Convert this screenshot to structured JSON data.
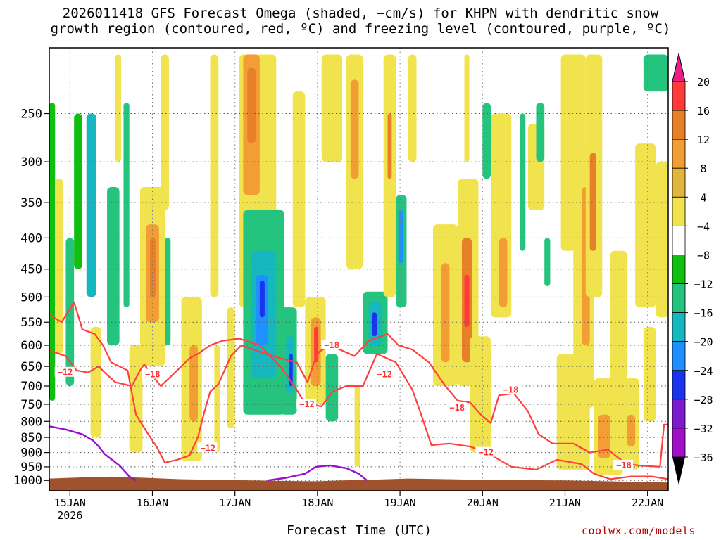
{
  "chart_data": {
    "type": "heatmap",
    "title_line1": "2026011418 GFS Forecast Omega (shaded, −cm/s) for KHPN with dendritic snow",
    "title_line2": "growth region (contoured, red, ºC) and freezing level (contoured, purple, ºC)",
    "xlabel": "Forecast Time (UTC)",
    "ylabel": "",
    "y_scale": "log-pressure",
    "ylim": [
      1040,
      195
    ],
    "y_ticks": [
      250,
      300,
      350,
      400,
      450,
      500,
      550,
      600,
      650,
      700,
      750,
      800,
      850,
      900,
      950,
      1000
    ],
    "x_ticks": [
      {
        "t": 0,
        "label": "15JAN",
        "sub": "2026"
      },
      {
        "t": 1,
        "label": "16JAN",
        "sub": ""
      },
      {
        "t": 2,
        "label": "17JAN",
        "sub": ""
      },
      {
        "t": 3,
        "label": "18JAN",
        "sub": ""
      },
      {
        "t": 4,
        "label": "19JAN",
        "sub": ""
      },
      {
        "t": 5,
        "label": "20JAN",
        "sub": ""
      },
      {
        "t": 6,
        "label": "21JAN",
        "sub": ""
      },
      {
        "t": 7,
        "label": "22JAN",
        "sub": ""
      }
    ],
    "xlim": [
      -0.25,
      7.25
    ],
    "grid": true,
    "colorbar": {
      "labels": [
        "20",
        "16",
        "12",
        "8",
        "4",
        "−4",
        "−8",
        "−12",
        "−16",
        "−20",
        "−24",
        "−28",
        "−32",
        "−36"
      ],
      "colors": [
        "#ff3a3a",
        "#e8802a",
        "#f29e35",
        "#e2b53c",
        "#f1e34e",
        "#ffffff",
        "#10c010",
        "#24c47e",
        "#17b7c0",
        "#1e90ff",
        "#1a34ee",
        "#7a1cce",
        "#a010c8",
        "#a9a9a9"
      ],
      "top_arrow_color": "#ee1c86",
      "bottom_arrow_color": "#000000"
    },
    "omega_cells": [
      {
        "t0": -0.25,
        "t1": -0.18,
        "p0": 240,
        "p1": 740,
        "v": -6
      },
      {
        "t0": -0.18,
        "t1": -0.08,
        "p0": 320,
        "p1": 620,
        "v": 5
      },
      {
        "t0": -0.05,
        "t1": 0.05,
        "p0": 400,
        "p1": 700,
        "v": -8
      },
      {
        "t0": 0.05,
        "t1": 0.15,
        "p0": 250,
        "p1": 450,
        "v": -6
      },
      {
        "t0": 0.2,
        "t1": 0.32,
        "p0": 250,
        "p1": 500,
        "v": -12
      },
      {
        "t0": 0.25,
        "t1": 0.38,
        "p0": 560,
        "p1": 850,
        "v": 5
      },
      {
        "t0": 0.45,
        "t1": 0.6,
        "p0": 330,
        "p1": 600,
        "v": -8
      },
      {
        "t0": 0.55,
        "t1": 0.62,
        "p0": 200,
        "p1": 300,
        "v": 5
      },
      {
        "t0": 0.65,
        "t1": 0.72,
        "p0": 240,
        "p1": 520,
        "v": -8
      },
      {
        "t0": 0.72,
        "t1": 0.88,
        "p0": 600,
        "p1": 900,
        "v": 5
      },
      {
        "t0": 0.85,
        "t1": 1.15,
        "p0": 330,
        "p1": 650,
        "v": 5
      },
      {
        "t0": 0.92,
        "t1": 1.08,
        "p0": 380,
        "p1": 550,
        "v": 9
      },
      {
        "t0": 0.97,
        "t1": 1.04,
        "p0": 400,
        "p1": 500,
        "v": 14
      },
      {
        "t0": 1.1,
        "t1": 1.2,
        "p0": 200,
        "p1": 360,
        "v": 5
      },
      {
        "t0": 1.15,
        "t1": 1.22,
        "p0": 400,
        "p1": 600,
        "v": -8
      },
      {
        "t0": 1.35,
        "t1": 1.6,
        "p0": 500,
        "p1": 930,
        "v": 5
      },
      {
        "t0": 1.45,
        "t1": 1.55,
        "p0": 600,
        "p1": 800,
        "v": 9
      },
      {
        "t0": 1.7,
        "t1": 1.8,
        "p0": 200,
        "p1": 500,
        "v": 5
      },
      {
        "t0": 1.75,
        "t1": 1.82,
        "p0": 600,
        "p1": 900,
        "v": 5
      },
      {
        "t0": 1.9,
        "t1": 2.0,
        "p0": 520,
        "p1": 820,
        "v": 5
      },
      {
        "t0": 2.05,
        "t1": 2.5,
        "p0": 200,
        "p1": 520,
        "v": 5
      },
      {
        "t0": 2.1,
        "t1": 2.3,
        "p0": 200,
        "p1": 340,
        "v": 10
      },
      {
        "t0": 2.15,
        "t1": 2.25,
        "p0": 210,
        "p1": 280,
        "v": 13
      },
      {
        "t0": 2.1,
        "t1": 2.6,
        "p0": 360,
        "p1": 780,
        "v": -8
      },
      {
        "t0": 2.2,
        "t1": 2.5,
        "p0": 420,
        "p1": 680,
        "v": -13
      },
      {
        "t0": 2.25,
        "t1": 2.4,
        "p0": 460,
        "p1": 600,
        "v": -17
      },
      {
        "t0": 2.3,
        "t1": 2.36,
        "p0": 470,
        "p1": 540,
        "v": -21
      },
      {
        "t0": 2.55,
        "t1": 2.75,
        "p0": 520,
        "p1": 780,
        "v": -8
      },
      {
        "t0": 2.62,
        "t1": 2.72,
        "p0": 580,
        "p1": 720,
        "v": -13
      },
      {
        "t0": 2.66,
        "t1": 2.7,
        "p0": 620,
        "p1": 700,
        "v": -20
      },
      {
        "t0": 2.7,
        "t1": 2.85,
        "p0": 230,
        "p1": 520,
        "v": 5
      },
      {
        "t0": 2.85,
        "t1": 3.1,
        "p0": 500,
        "p1": 750,
        "v": 5
      },
      {
        "t0": 2.92,
        "t1": 3.04,
        "p0": 540,
        "p1": 700,
        "v": 9
      },
      {
        "t0": 2.96,
        "t1": 3.01,
        "p0": 560,
        "p1": 640,
        "v": 16
      },
      {
        "t0": 3.05,
        "t1": 3.3,
        "p0": 200,
        "p1": 300,
        "v": 5
      },
      {
        "t0": 3.1,
        "t1": 3.25,
        "p0": 620,
        "p1": 800,
        "v": -8
      },
      {
        "t0": 3.35,
        "t1": 3.55,
        "p0": 200,
        "p1": 450,
        "v": 5
      },
      {
        "t0": 3.4,
        "t1": 3.5,
        "p0": 220,
        "p1": 320,
        "v": 9
      },
      {
        "t0": 3.45,
        "t1": 3.52,
        "p0": 700,
        "p1": 950,
        "v": 5
      },
      {
        "t0": 3.55,
        "t1": 3.85,
        "p0": 490,
        "p1": 620,
        "v": -8
      },
      {
        "t0": 3.62,
        "t1": 3.78,
        "p0": 510,
        "p1": 600,
        "v": -13
      },
      {
        "t0": 3.66,
        "t1": 3.72,
        "p0": 530,
        "p1": 580,
        "v": -20
      },
      {
        "t0": 3.8,
        "t1": 3.95,
        "p0": 200,
        "p1": 500,
        "v": 5
      },
      {
        "t0": 3.85,
        "t1": 3.9,
        "p0": 250,
        "p1": 320,
        "v": 12
      },
      {
        "t0": 3.95,
        "t1": 4.08,
        "p0": 340,
        "p1": 520,
        "v": -10
      },
      {
        "t0": 3.98,
        "t1": 4.04,
        "p0": 360,
        "p1": 440,
        "v": -16
      },
      {
        "t0": 4.1,
        "t1": 4.2,
        "p0": 200,
        "p1": 300,
        "v": 5
      },
      {
        "t0": 4.4,
        "t1": 4.7,
        "p0": 380,
        "p1": 700,
        "v": 5
      },
      {
        "t0": 4.5,
        "t1": 4.6,
        "p0": 440,
        "p1": 640,
        "v": 9
      },
      {
        "t0": 4.7,
        "t1": 4.95,
        "p0": 320,
        "p1": 700,
        "v": 5
      },
      {
        "t0": 4.75,
        "t1": 4.87,
        "p0": 400,
        "p1": 640,
        "v": 12
      },
      {
        "t0": 4.78,
        "t1": 4.84,
        "p0": 460,
        "p1": 560,
        "v": 16
      },
      {
        "t0": 4.78,
        "t1": 4.84,
        "p0": 200,
        "p1": 300,
        "v": 5
      },
      {
        "t0": 4.85,
        "t1": 5.1,
        "p0": 580,
        "p1": 900,
        "v": 5
      },
      {
        "t0": 5.0,
        "t1": 5.1,
        "p0": 240,
        "p1": 320,
        "v": -8
      },
      {
        "t0": 5.1,
        "t1": 5.35,
        "p0": 250,
        "p1": 540,
        "v": 5
      },
      {
        "t0": 5.2,
        "t1": 5.3,
        "p0": 400,
        "p1": 520,
        "v": 9
      },
      {
        "t0": 5.45,
        "t1": 5.52,
        "p0": 250,
        "p1": 420,
        "v": -8
      },
      {
        "t0": 5.55,
        "t1": 5.75,
        "p0": 260,
        "p1": 360,
        "v": 5
      },
      {
        "t0": 5.65,
        "t1": 5.75,
        "p0": 240,
        "p1": 300,
        "v": -8
      },
      {
        "t0": 5.75,
        "t1": 5.82,
        "p0": 400,
        "p1": 480,
        "v": -8
      },
      {
        "t0": 5.9,
        "t1": 6.3,
        "p0": 620,
        "p1": 960,
        "v": 5
      },
      {
        "t0": 5.95,
        "t1": 6.25,
        "p0": 200,
        "p1": 420,
        "v": 5
      },
      {
        "t0": 6.1,
        "t1": 6.35,
        "p0": 280,
        "p1": 760,
        "v": 5
      },
      {
        "t0": 6.2,
        "t1": 6.3,
        "p0": 330,
        "p1": 600,
        "v": 10
      },
      {
        "t0": 6.25,
        "t1": 6.45,
        "p0": 200,
        "p1": 500,
        "v": 5
      },
      {
        "t0": 6.3,
        "t1": 6.38,
        "p0": 290,
        "p1": 420,
        "v": 13
      },
      {
        "t0": 6.35,
        "t1": 6.7,
        "p0": 680,
        "p1": 980,
        "v": 5
      },
      {
        "t0": 6.4,
        "t1": 6.55,
        "p0": 780,
        "p1": 920,
        "v": 9
      },
      {
        "t0": 6.55,
        "t1": 6.75,
        "p0": 420,
        "p1": 760,
        "v": 5
      },
      {
        "t0": 6.7,
        "t1": 6.9,
        "p0": 680,
        "p1": 960,
        "v": 5
      },
      {
        "t0": 6.75,
        "t1": 6.85,
        "p0": 780,
        "p1": 880,
        "v": 9
      },
      {
        "t0": 6.85,
        "t1": 7.1,
        "p0": 280,
        "p1": 520,
        "v": 5
      },
      {
        "t0": 6.95,
        "t1": 7.1,
        "p0": 560,
        "p1": 800,
        "v": 5
      },
      {
        "t0": 6.95,
        "t1": 7.25,
        "p0": 200,
        "p1": 230,
        "v": -8
      },
      {
        "t0": 7.1,
        "t1": 7.25,
        "p0": 300,
        "p1": 540,
        "v": 5
      }
    ],
    "dgz_labels": [
      {
        "t": -0.15,
        "p": 665,
        "text": "−12"
      },
      {
        "t": 0.91,
        "p": 670,
        "text": "−18"
      },
      {
        "t": 1.58,
        "p": 885,
        "text": "−12"
      },
      {
        "t": 2.78,
        "p": 750,
        "text": "−12"
      },
      {
        "t": 3.08,
        "p": 600,
        "text": "−18"
      },
      {
        "t": 3.72,
        "p": 670,
        "text": "−12"
      },
      {
        "t": 4.6,
        "p": 760,
        "text": "−18"
      },
      {
        "t": 5.25,
        "p": 710,
        "text": "−18"
      },
      {
        "t": 4.95,
        "p": 900,
        "text": "−12"
      },
      {
        "t": 6.62,
        "p": 945,
        "text": "−18"
      }
    ],
    "dgz_minus12": [
      [
        -0.25,
        612
      ],
      [
        -0.05,
        625
      ],
      [
        0.08,
        660
      ],
      [
        0.22,
        665
      ],
      [
        0.35,
        650
      ],
      [
        0.42,
        665
      ],
      [
        0.55,
        690
      ],
      [
        0.75,
        700
      ],
      [
        0.85,
        660
      ],
      [
        0.9,
        645
      ],
      [
        0.95,
        660
      ],
      [
        1.1,
        700
      ],
      [
        1.25,
        670
      ],
      [
        1.35,
        650
      ],
      [
        1.45,
        630
      ],
      [
        1.55,
        620
      ],
      [
        1.7,
        600
      ],
      [
        1.85,
        590
      ],
      [
        2.05,
        585
      ],
      [
        2.3,
        600
      ],
      [
        2.55,
        650
      ],
      [
        2.72,
        700
      ],
      [
        2.85,
        748
      ],
      [
        3.05,
        756
      ],
      [
        3.18,
        715
      ],
      [
        3.35,
        700
      ],
      [
        3.55,
        700
      ],
      [
        3.72,
        620
      ],
      [
        3.95,
        640
      ],
      [
        4.15,
        710
      ],
      [
        4.25,
        775
      ],
      [
        4.38,
        875
      ],
      [
        4.6,
        870
      ],
      [
        4.85,
        880
      ],
      [
        5.05,
        900
      ],
      [
        5.35,
        950
      ],
      [
        5.65,
        960
      ],
      [
        5.9,
        925
      ],
      [
        6.2,
        940
      ],
      [
        6.35,
        975
      ],
      [
        6.55,
        995
      ],
      [
        6.8,
        985
      ],
      [
        7.05,
        985
      ],
      [
        7.25,
        995
      ]
    ],
    "dgz_minus18": [
      [
        -0.25,
        535
      ],
      [
        -0.1,
        550
      ],
      [
        0.05,
        510
      ],
      [
        0.15,
        565
      ],
      [
        0.3,
        575
      ],
      [
        0.4,
        600
      ],
      [
        0.5,
        640
      ],
      [
        0.7,
        660
      ],
      [
        0.8,
        780
      ],
      [
        0.95,
        840
      ],
      [
        1.05,
        880
      ],
      [
        1.15,
        935
      ],
      [
        1.3,
        925
      ],
      [
        1.45,
        910
      ],
      [
        1.55,
        850
      ],
      [
        1.62,
        780
      ],
      [
        1.7,
        715
      ],
      [
        1.8,
        695
      ],
      [
        1.95,
        625
      ],
      [
        2.08,
        600
      ],
      [
        2.3,
        615
      ],
      [
        2.55,
        630
      ],
      [
        2.75,
        640
      ],
      [
        2.88,
        690
      ],
      [
        2.95,
        645
      ],
      [
        3.02,
        615
      ],
      [
        3.15,
        600
      ],
      [
        3.45,
        625
      ],
      [
        3.62,
        590
      ],
      [
        3.85,
        575
      ],
      [
        3.98,
        600
      ],
      [
        4.15,
        610
      ],
      [
        4.35,
        640
      ],
      [
        4.55,
        700
      ],
      [
        4.7,
        740
      ],
      [
        4.85,
        745
      ],
      [
        4.98,
        780
      ],
      [
        5.1,
        805
      ],
      [
        5.2,
        725
      ],
      [
        5.38,
        720
      ],
      [
        5.55,
        770
      ],
      [
        5.68,
        840
      ],
      [
        5.85,
        870
      ],
      [
        6.1,
        870
      ],
      [
        6.3,
        900
      ],
      [
        6.52,
        890
      ],
      [
        6.72,
        935
      ],
      [
        6.88,
        945
      ],
      [
        7.15,
        950
      ],
      [
        7.2,
        810
      ],
      [
        7.25,
        810
      ]
    ],
    "freezing_level": [
      [
        -0.25,
        815
      ],
      [
        -0.05,
        825
      ],
      [
        0.15,
        840
      ],
      [
        0.28,
        860
      ],
      [
        0.35,
        880
      ],
      [
        0.42,
        905
      ],
      [
        0.6,
        945
      ],
      [
        0.72,
        985
      ],
      [
        0.8,
        1000
      ]
    ],
    "freezing_level_2": [
      [
        2.4,
        1000
      ],
      [
        2.62,
        990
      ],
      [
        2.85,
        975
      ],
      [
        2.98,
        950
      ],
      [
        3.15,
        945
      ],
      [
        3.35,
        955
      ],
      [
        3.5,
        975
      ],
      [
        3.6,
        1000
      ]
    ],
    "terrain": [
      [
        -0.25,
        993
      ],
      [
        0.2,
        988
      ],
      [
        0.5,
        986
      ],
      [
        0.9,
        990
      ],
      [
        1.3,
        995
      ],
      [
        1.8,
        998
      ],
      [
        2.2,
        1000
      ],
      [
        2.6,
        1002
      ],
      [
        3.0,
        1003
      ],
      [
        3.3,
        1000
      ],
      [
        3.7,
        997
      ],
      [
        4.1,
        993
      ],
      [
        4.5,
        995
      ],
      [
        5.0,
        998
      ],
      [
        5.5,
        999
      ],
      [
        6.0,
        1000
      ],
      [
        6.5,
        1003
      ],
      [
        7.0,
        1006
      ],
      [
        7.25,
        1008
      ]
    ]
  }
}
